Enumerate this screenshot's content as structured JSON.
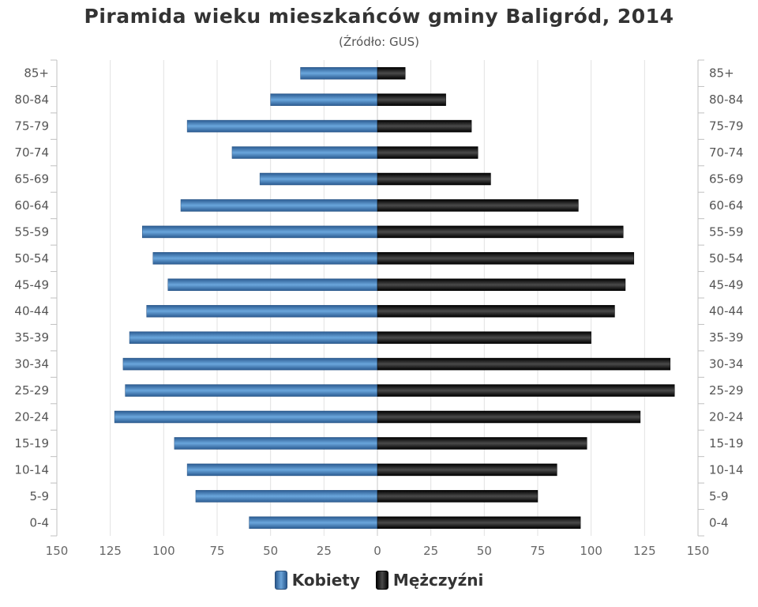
{
  "title": "Piramida wieku mieszkańców gminy Baligród, 2014",
  "subtitle": "(Źródło: GUS)",
  "chart_data": {
    "type": "bar",
    "orientation": "horizontal-pyramid",
    "categories": [
      "0-4",
      "5-9",
      "10-14",
      "15-19",
      "20-24",
      "25-29",
      "30-34",
      "35-39",
      "40-44",
      "45-49",
      "50-54",
      "55-59",
      "60-64",
      "65-69",
      "70-74",
      "75-79",
      "80-84",
      "85+"
    ],
    "series": [
      {
        "name": "Kobiety",
        "color": "#4a85c0",
        "values": [
          60,
          85,
          89,
          95,
          123,
          118,
          119,
          116,
          108,
          98,
          105,
          110,
          92,
          55,
          68,
          89,
          50,
          36
        ]
      },
      {
        "name": "Mężczyźni",
        "color": "#1a1a1a",
        "values": [
          95,
          75,
          84,
          98,
          123,
          139,
          137,
          100,
          111,
          116,
          120,
          115,
          94,
          53,
          47,
          44,
          32,
          13
        ]
      }
    ],
    "xlim": [
      -150,
      150
    ],
    "x_ticks": [
      "150",
      "125",
      "100",
      "75",
      "50",
      "25",
      "0",
      "25",
      "50",
      "75",
      "100",
      "125",
      "150"
    ],
    "grid": true,
    "legend_position": "bottom-center"
  }
}
